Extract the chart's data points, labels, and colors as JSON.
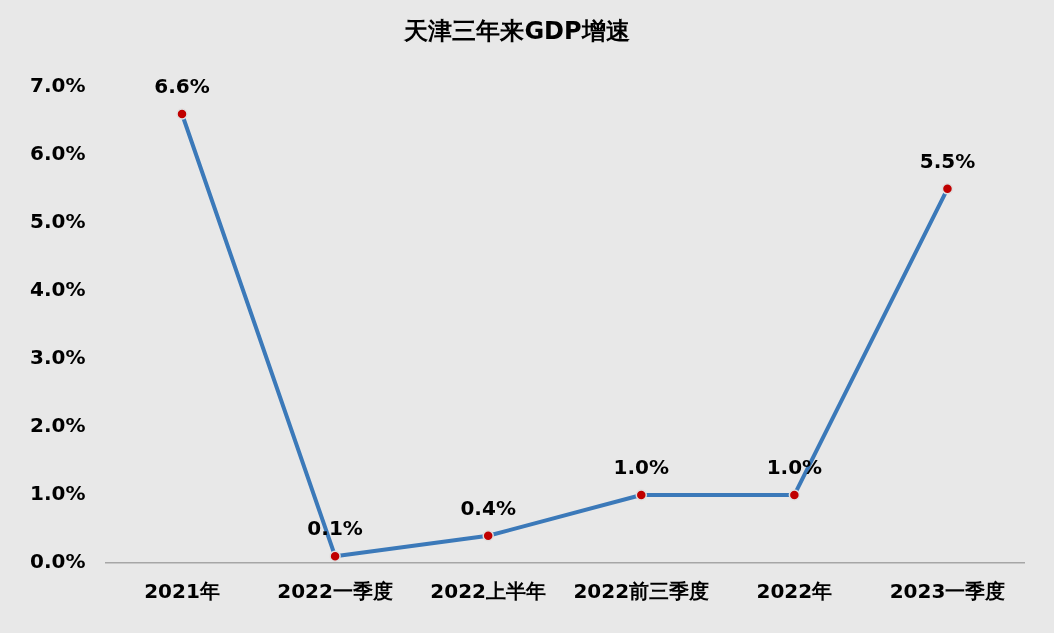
{
  "chart_data": {
    "type": "line",
    "title": "天津三年来GDP增速",
    "categories": [
      "2021年",
      "2022一季度",
      "2022上半年",
      "2022前三季度",
      "2022年",
      "2023一季度"
    ],
    "series": [
      {
        "color": "#3b79b9",
        "values": [
          6.6,
          0.1,
          0.4,
          1.0,
          1.0,
          5.5
        ],
        "value_labels": [
          "6.6%",
          "0.1%",
          "0.4%",
          "1.0%",
          "1.0%",
          "5.5%"
        ]
      }
    ],
    "ylim": [
      0,
      7
    ],
    "yticks": [
      {
        "value": 0,
        "label": "0.0%"
      },
      {
        "value": 1,
        "label": "1.0%"
      },
      {
        "value": 2,
        "label": "2.0%"
      },
      {
        "value": 3,
        "label": "3.0%"
      },
      {
        "value": 4,
        "label": "4.0%"
      },
      {
        "value": 5,
        "label": "5.0%"
      },
      {
        "value": 6,
        "label": "6.0%"
      },
      {
        "value": 7,
        "label": "7.0%"
      }
    ],
    "grid": false,
    "legend": false,
    "marker": "circle",
    "line_style": "solid"
  }
}
